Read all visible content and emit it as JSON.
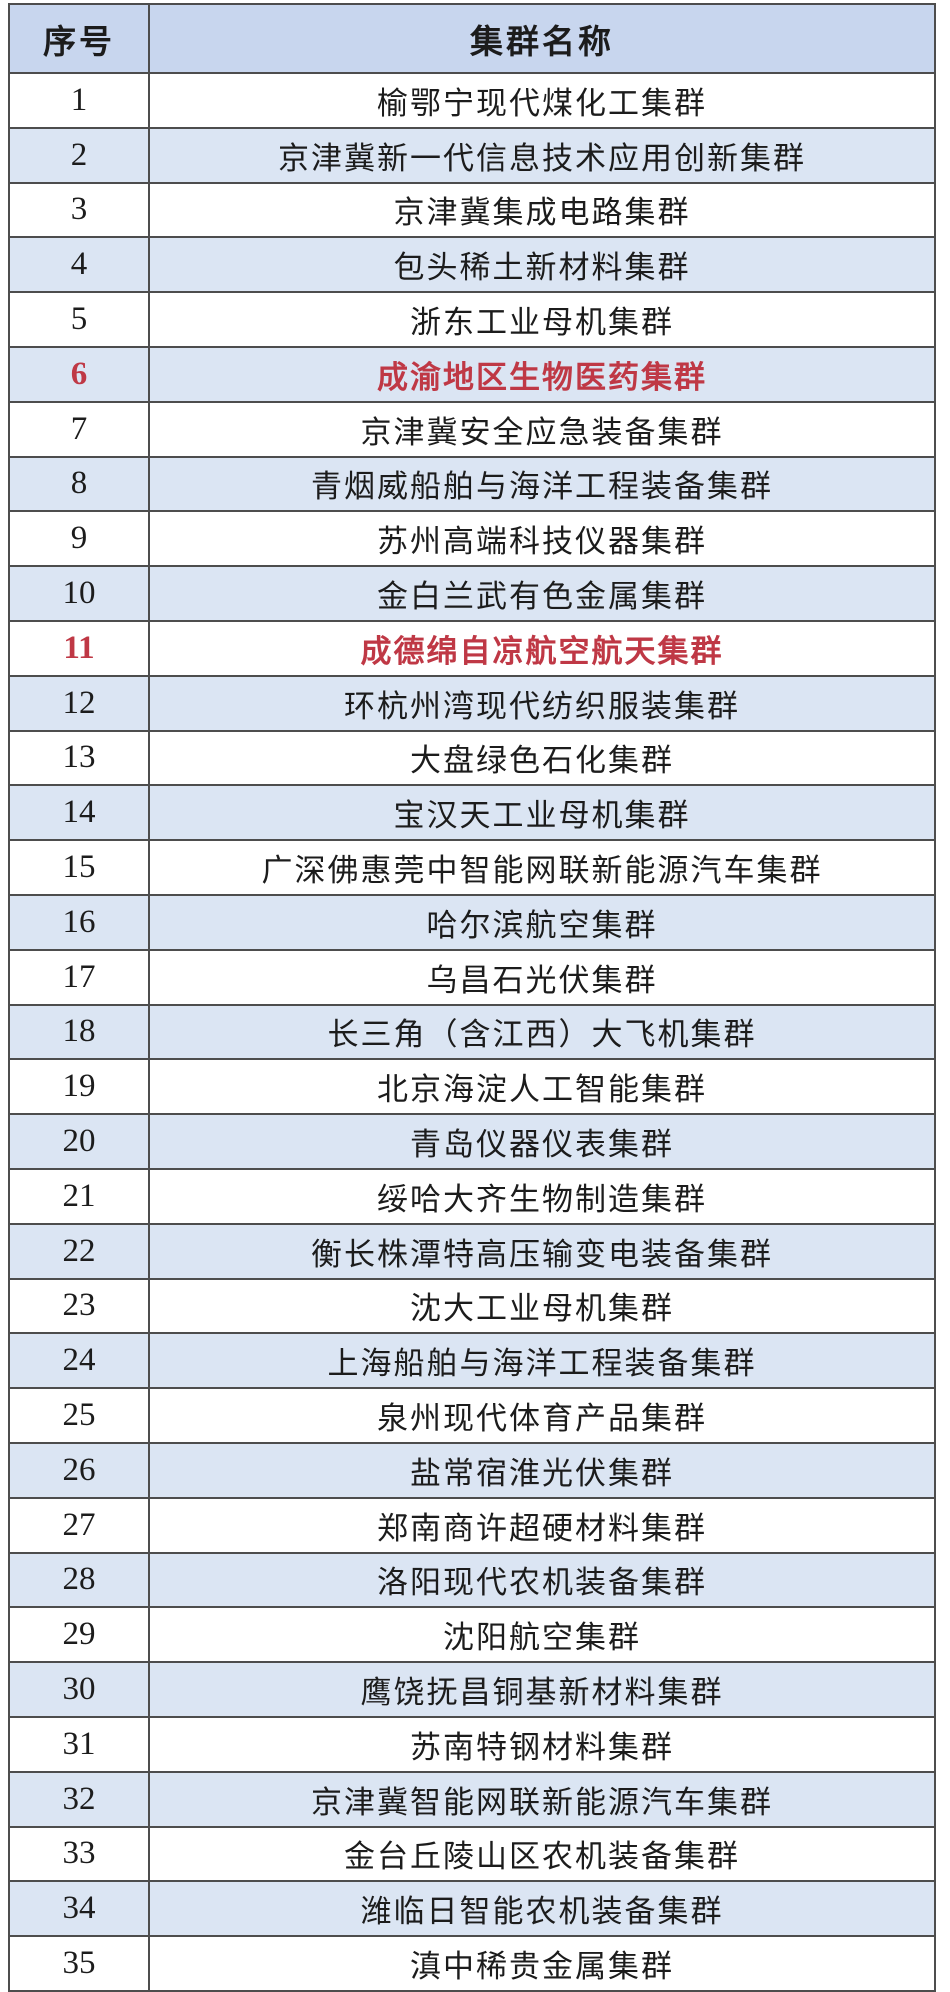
{
  "table": {
    "columns": [
      {
        "label": "序号"
      },
      {
        "label": "集群名称"
      }
    ],
    "rows": [
      {
        "no": "1",
        "name": "榆鄂宁现代煤化工集群",
        "highlight": false
      },
      {
        "no": "2",
        "name": "京津冀新一代信息技术应用创新集群",
        "highlight": false
      },
      {
        "no": "3",
        "name": "京津冀集成电路集群",
        "highlight": false
      },
      {
        "no": "4",
        "name": "包头稀土新材料集群",
        "highlight": false
      },
      {
        "no": "5",
        "name": "浙东工业母机集群",
        "highlight": false
      },
      {
        "no": "6",
        "name": "成渝地区生物医药集群",
        "highlight": true
      },
      {
        "no": "7",
        "name": "京津冀安全应急装备集群",
        "highlight": false
      },
      {
        "no": "8",
        "name": "青烟威船舶与海洋工程装备集群",
        "highlight": false
      },
      {
        "no": "9",
        "name": "苏州高端科技仪器集群",
        "highlight": false
      },
      {
        "no": "10",
        "name": "金白兰武有色金属集群",
        "highlight": false
      },
      {
        "no": "11",
        "name": "成德绵自凉航空航天集群",
        "highlight": true
      },
      {
        "no": "12",
        "name": "环杭州湾现代纺织服装集群",
        "highlight": false
      },
      {
        "no": "13",
        "name": "大盘绿色石化集群",
        "highlight": false
      },
      {
        "no": "14",
        "name": "宝汉天工业母机集群",
        "highlight": false
      },
      {
        "no": "15",
        "name": "广深佛惠莞中智能网联新能源汽车集群",
        "highlight": false
      },
      {
        "no": "16",
        "name": "哈尔滨航空集群",
        "highlight": false
      },
      {
        "no": "17",
        "name": "乌昌石光伏集群",
        "highlight": false
      },
      {
        "no": "18",
        "name": "长三角（含江西）大飞机集群",
        "highlight": false
      },
      {
        "no": "19",
        "name": "北京海淀人工智能集群",
        "highlight": false
      },
      {
        "no": "20",
        "name": "青岛仪器仪表集群",
        "highlight": false
      },
      {
        "no": "21",
        "name": "绥哈大齐生物制造集群",
        "highlight": false
      },
      {
        "no": "22",
        "name": "衡长株潭特高压输变电装备集群",
        "highlight": false
      },
      {
        "no": "23",
        "name": "沈大工业母机集群",
        "highlight": false
      },
      {
        "no": "24",
        "name": "上海船舶与海洋工程装备集群",
        "highlight": false
      },
      {
        "no": "25",
        "name": "泉州现代体育产品集群",
        "highlight": false
      },
      {
        "no": "26",
        "name": "盐常宿淮光伏集群",
        "highlight": false
      },
      {
        "no": "27",
        "name": "郑南商许超硬材料集群",
        "highlight": false
      },
      {
        "no": "28",
        "name": "洛阳现代农机装备集群",
        "highlight": false
      },
      {
        "no": "29",
        "name": "沈阳航空集群",
        "highlight": false
      },
      {
        "no": "30",
        "name": "鹰饶抚昌铜基新材料集群",
        "highlight": false
      },
      {
        "no": "31",
        "name": "苏南特钢材料集群",
        "highlight": false
      },
      {
        "no": "32",
        "name": "京津冀智能网联新能源汽车集群",
        "highlight": false
      },
      {
        "no": "33",
        "name": "金台丘陵山区农机装备集群",
        "highlight": false
      },
      {
        "no": "34",
        "name": "潍临日智能农机装备集群",
        "highlight": false
      },
      {
        "no": "35",
        "name": "滇中稀贵金属集群",
        "highlight": false
      }
    ]
  },
  "colors": {
    "header_bg": "#c8d6ee",
    "row_alt_bg": "#dbe5f3",
    "row_bg": "#ffffff",
    "border": "#4d4d4d",
    "text": "#1c1c1c",
    "highlight_text": "#bf3845"
  }
}
